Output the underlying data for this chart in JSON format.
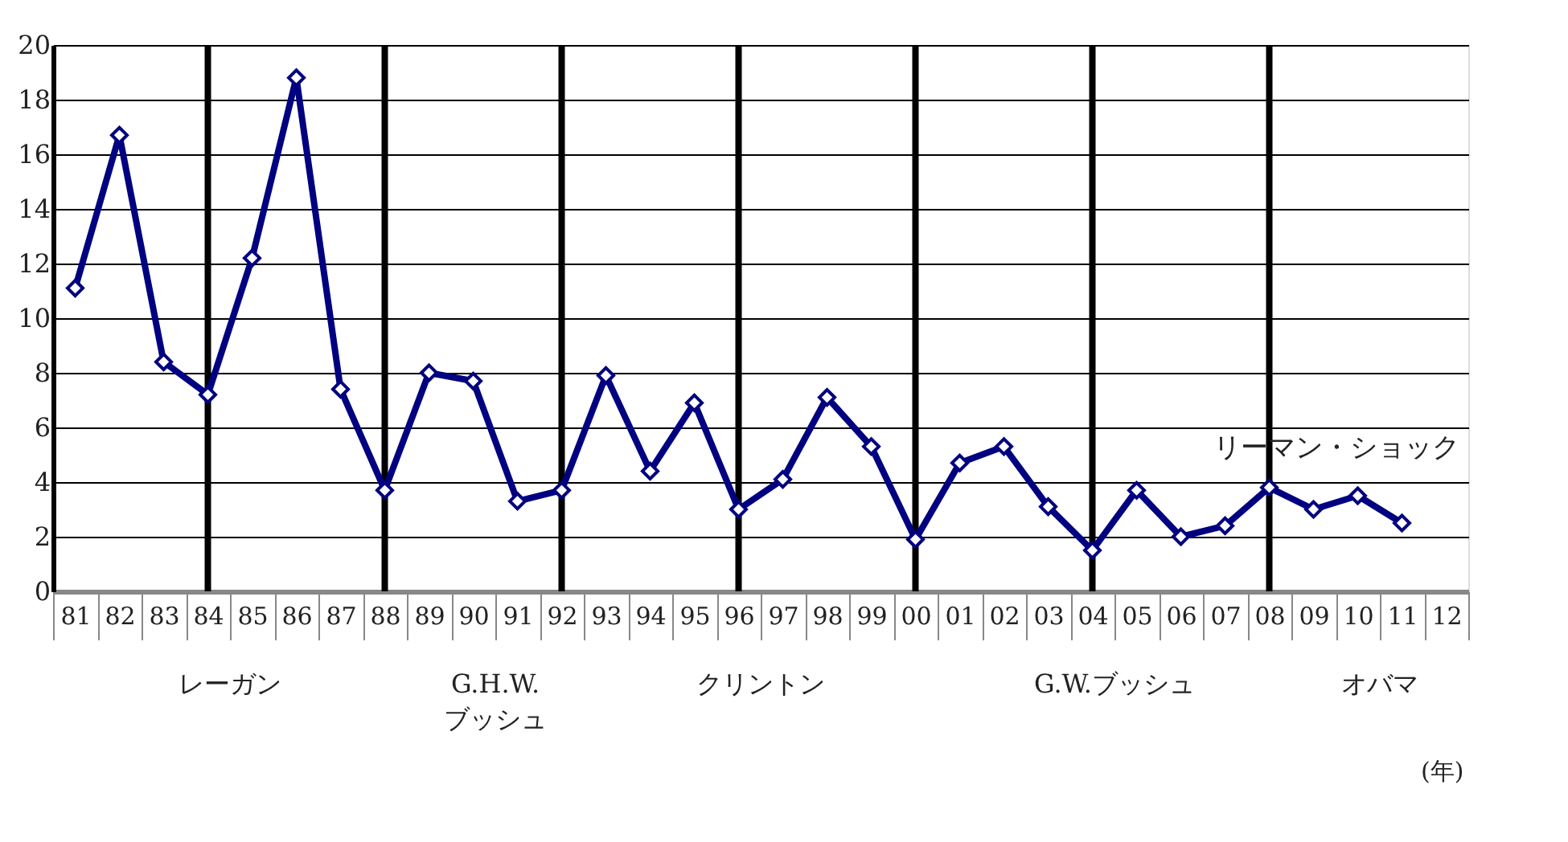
{
  "chart_data": {
    "type": "line",
    "categories": [
      "81",
      "82",
      "83",
      "84",
      "85",
      "86",
      "87",
      "88",
      "89",
      "90",
      "91",
      "92",
      "93",
      "94",
      "95",
      "96",
      "97",
      "98",
      "99",
      "00",
      "01",
      "02",
      "03",
      "04",
      "05",
      "06",
      "07",
      "08",
      "09",
      "10",
      "11",
      "12"
    ],
    "series": [
      {
        "color": "#000080",
        "values": [
          11.1,
          16.7,
          8.4,
          7.2,
          12.2,
          18.8,
          7.4,
          3.7,
          8.0,
          7.7,
          3.3,
          3.7,
          7.9,
          4.4,
          6.9,
          3.0,
          4.1,
          7.1,
          5.3,
          1.9,
          4.7,
          5.3,
          3.1,
          1.5,
          3.7,
          2.0,
          2.4,
          3.8,
          3.0,
          3.5,
          2.5,
          null
        ]
      }
    ],
    "ylim": [
      0,
      20
    ],
    "yticks": [
      0,
      2,
      4,
      6,
      8,
      10,
      12,
      14,
      16,
      18,
      20
    ],
    "ref_lines": [
      {
        "axis": "x",
        "value": "84",
        "color": "#000000"
      },
      {
        "axis": "x",
        "value": "88",
        "color": "#000000"
      },
      {
        "axis": "x",
        "value": "92",
        "color": "#000000"
      },
      {
        "axis": "x",
        "value": "96",
        "color": "#000000"
      },
      {
        "axis": "x",
        "value": "00",
        "color": "#000000"
      },
      {
        "axis": "x",
        "value": "04",
        "color": "#000000"
      },
      {
        "axis": "x",
        "value": "08",
        "color": "#000000"
      }
    ],
    "annotations": [
      "リーマン・ショック",
      "(年)",
      "レーガン",
      "G.H.W.\nブッシュ",
      "クリントン",
      "G.W.ブッシュ",
      "オバマ"
    ],
    "grid": "y",
    "marker": "diamond",
    "line_style": "solid"
  }
}
